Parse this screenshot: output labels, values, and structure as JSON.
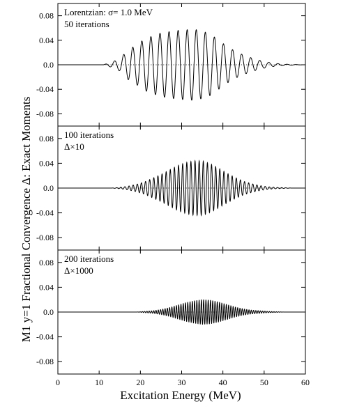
{
  "chart_data": {
    "type": "line",
    "xlabel": "Excitation Energy (MeV)",
    "ylabel": "M1 y=1 Fractional Convergence Δ: Exact Moments",
    "xlim": [
      0,
      60
    ],
    "xticks": [
      0,
      10,
      20,
      30,
      40,
      50,
      60
    ],
    "grid": false,
    "panels": [
      {
        "annotation": [
          "Lorentzian: σ= 1.0 MeV",
          "50 iterations"
        ],
        "ylim": [
          -0.1,
          0.1
        ],
        "yticks": [
          "0.08",
          "0.04",
          "0.0",
          "-0.04",
          "-0.08"
        ],
        "series": [
          {
            "style": "solid",
            "oscillation_period_MeV": 2.2,
            "envelope": {
              "x": [
                0,
                11,
                13,
                15,
                17,
                19,
                21,
                23,
                25,
                27,
                29,
                31,
                33,
                35,
                37,
                39,
                41,
                43,
                45,
                47,
                49,
                51,
                53,
                55,
                57,
                60
              ],
              "y": [
                0,
                0,
                0.004,
                0.01,
                0.024,
                0.032,
                0.042,
                0.047,
                0.052,
                0.054,
                0.056,
                0.057,
                0.058,
                0.055,
                0.05,
                0.04,
                0.03,
                0.022,
                0.016,
                0.011,
                0.007,
                0.004,
                0.002,
                0.001,
                0.0005,
                0
              ]
            }
          },
          {
            "style": "dotted",
            "x": [
              0,
              60
            ],
            "y": [
              0,
              0
            ]
          }
        ]
      },
      {
        "annotation": [
          "100 iterations",
          "Δ×10"
        ],
        "ylim": [
          -0.1,
          0.1
        ],
        "yticks": [
          "0.08",
          "0.04",
          "0.0",
          "-0.04",
          "-0.08"
        ],
        "series": [
          {
            "style": "solid",
            "oscillation_period_MeV": 1.0,
            "envelope": {
              "x": [
                0,
                13,
                15,
                17,
                19,
                21,
                23,
                25,
                27,
                29,
                31,
                33,
                35,
                37,
                39,
                41,
                43,
                45,
                47,
                49,
                51,
                53,
                55,
                57,
                60
              ],
              "y": [
                0,
                0,
                0.001,
                0.003,
                0.006,
                0.01,
                0.016,
                0.022,
                0.029,
                0.036,
                0.041,
                0.044,
                0.044,
                0.039,
                0.032,
                0.024,
                0.017,
                0.011,
                0.007,
                0.004,
                0.002,
                0.001,
                0.0005,
                0,
                0
              ]
            }
          },
          {
            "style": "dotted",
            "x": [
              0,
              60
            ],
            "y": [
              0,
              0
            ]
          }
        ]
      },
      {
        "annotation": [
          "200 iterations",
          "Δ×1000"
        ],
        "ylim": [
          -0.1,
          0.1
        ],
        "yticks": [
          "0.08",
          "0.04",
          "0.0",
          "-0.04",
          "-0.08"
        ],
        "series": [
          {
            "style": "solid",
            "oscillation_period_MeV": 0.55,
            "envelope": {
              "x": [
                0,
                19,
                21,
                23,
                25,
                27,
                29,
                31,
                33,
                35,
                37,
                39,
                41,
                43,
                45,
                47,
                49,
                51,
                53,
                55,
                60
              ],
              "y": [
                0,
                0,
                0.001,
                0.002,
                0.004,
                0.007,
                0.011,
                0.015,
                0.018,
                0.02,
                0.019,
                0.016,
                0.012,
                0.008,
                0.005,
                0.003,
                0.002,
                0.001,
                0.0005,
                0,
                0
              ]
            }
          },
          {
            "style": "dotted",
            "x": [
              0,
              60
            ],
            "y": [
              0,
              0
            ]
          }
        ]
      }
    ]
  }
}
